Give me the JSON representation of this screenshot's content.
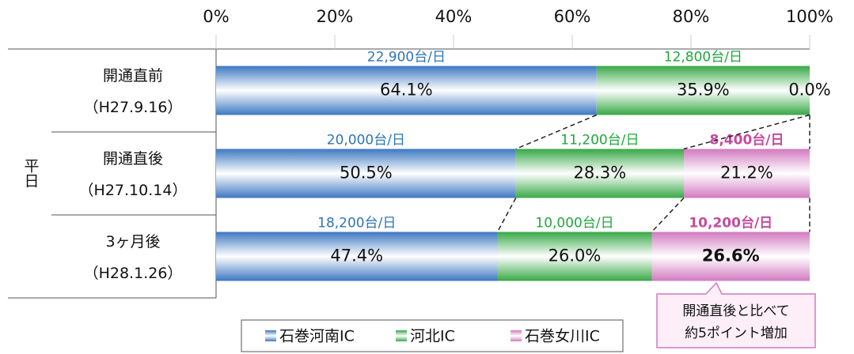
{
  "chart_data": {
    "type": "stacked-barh",
    "row_group_label": "平日",
    "categories": [
      "開通直前",
      "開通直後",
      "3ヶ月後"
    ],
    "category_dates": [
      "（H27.9.16）",
      "（H27.10.14）",
      "（H28.1.26）"
    ],
    "xlim": [
      0,
      100
    ],
    "xticks": [
      {
        "value": 0,
        "label": "0%"
      },
      {
        "value": 20,
        "label": "20%"
      },
      {
        "value": 40,
        "label": "40%"
      },
      {
        "value": 60,
        "label": "60%"
      },
      {
        "value": 80,
        "label": "80%"
      },
      {
        "value": 100,
        "label": "100%"
      }
    ],
    "grid": true,
    "series": [
      {
        "name": "石巻河南IC",
        "color": "#3d78c2",
        "label_color": "#2e75b6",
        "values": [
          64.1,
          50.5,
          47.4
        ],
        "value_labels": [
          "64.1%",
          "50.5%",
          "47.4%"
        ],
        "volume_labels": [
          "22,900台/日",
          "20,000台/日",
          "18,200台/日"
        ],
        "bold_labels": [
          false,
          false,
          false
        ],
        "volume_bold": false
      },
      {
        "name": "河北IC",
        "color": "#38a846",
        "label_color": "#1fa83a",
        "values": [
          35.9,
          28.3,
          26.0
        ],
        "value_labels": [
          "35.9%",
          "28.3%",
          "26.0%"
        ],
        "volume_labels": [
          "12,800台/日",
          "11,200台/日",
          "10,000台/日"
        ],
        "bold_labels": [
          false,
          false,
          false
        ],
        "volume_bold": false
      },
      {
        "name": "石巻女川IC",
        "color": "#d27ac0",
        "label_color": "#c64a9e",
        "values": [
          0.0,
          21.2,
          26.6
        ],
        "value_labels": [
          "0.0%",
          "21.2%",
          "26.6%"
        ],
        "volume_labels": [
          null,
          "8,400台/日",
          "10,200台/日"
        ],
        "bold_labels": [
          false,
          false,
          true
        ],
        "volume_bold": true
      }
    ],
    "annotation": [
      "開通直後と比べて",
      "約5ポイント増加"
    ]
  }
}
